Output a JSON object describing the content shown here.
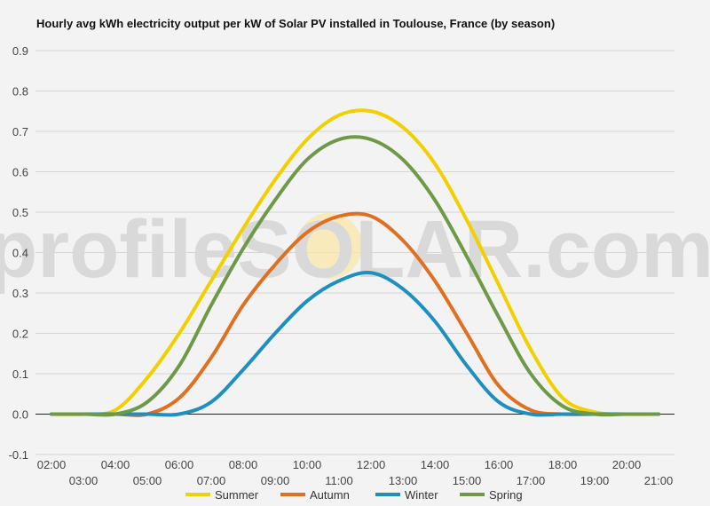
{
  "chart_data": {
    "type": "line",
    "title": "Hourly avg kWh electricity output per kW of Solar PV installed in Toulouse, France (by season)",
    "xlabel": "",
    "ylabel": "",
    "watermark": "profileSOLAR.com",
    "x_ticks": [
      "02:00",
      "03:00",
      "04:00",
      "05:00",
      "06:00",
      "07:00",
      "08:00",
      "09:00",
      "10:00",
      "11:00",
      "12:00",
      "13:00",
      "14:00",
      "15:00",
      "16:00",
      "17:00",
      "18:00",
      "19:00",
      "20:00",
      "21:00"
    ],
    "y_ticks": [
      "-0.1",
      "0.0",
      "0.1",
      "0.2",
      "0.3",
      "0.4",
      "0.5",
      "0.6",
      "0.7",
      "0.8",
      "0.9"
    ],
    "ylim": [
      -0.1,
      0.9
    ],
    "grid": true,
    "legend_position": "bottom",
    "x_hours": [
      2,
      3,
      4,
      5,
      6,
      7,
      8,
      9,
      10,
      11,
      12,
      13,
      14,
      15,
      16,
      17,
      18,
      19,
      20,
      21
    ],
    "series": [
      {
        "name": "Summer",
        "color": "#f2d000",
        "values": [
          0.0,
          0.0,
          0.01,
          0.09,
          0.2,
          0.33,
          0.46,
          0.58,
          0.68,
          0.74,
          0.75,
          0.71,
          0.62,
          0.48,
          0.32,
          0.16,
          0.04,
          0.005,
          0.0,
          0.0
        ]
      },
      {
        "name": "Autumn",
        "color": "#e07020",
        "values": [
          0.0,
          0.0,
          0.0,
          0.0,
          0.04,
          0.14,
          0.27,
          0.37,
          0.45,
          0.49,
          0.49,
          0.43,
          0.33,
          0.2,
          0.07,
          0.01,
          0.0,
          0.0,
          0.0,
          0.0
        ]
      },
      {
        "name": "Winter",
        "color": "#1f8fbf",
        "values": [
          0.0,
          0.0,
          0.0,
          0.0,
          0.0,
          0.03,
          0.11,
          0.2,
          0.28,
          0.33,
          0.35,
          0.31,
          0.23,
          0.12,
          0.03,
          0.0,
          0.0,
          0.0,
          0.0,
          0.0
        ]
      },
      {
        "name": "Spring",
        "color": "#6e9a48",
        "values": [
          0.0,
          0.0,
          0.0,
          0.03,
          0.12,
          0.27,
          0.41,
          0.53,
          0.63,
          0.68,
          0.68,
          0.63,
          0.53,
          0.39,
          0.24,
          0.1,
          0.02,
          0.0,
          0.0,
          0.0
        ]
      }
    ]
  }
}
